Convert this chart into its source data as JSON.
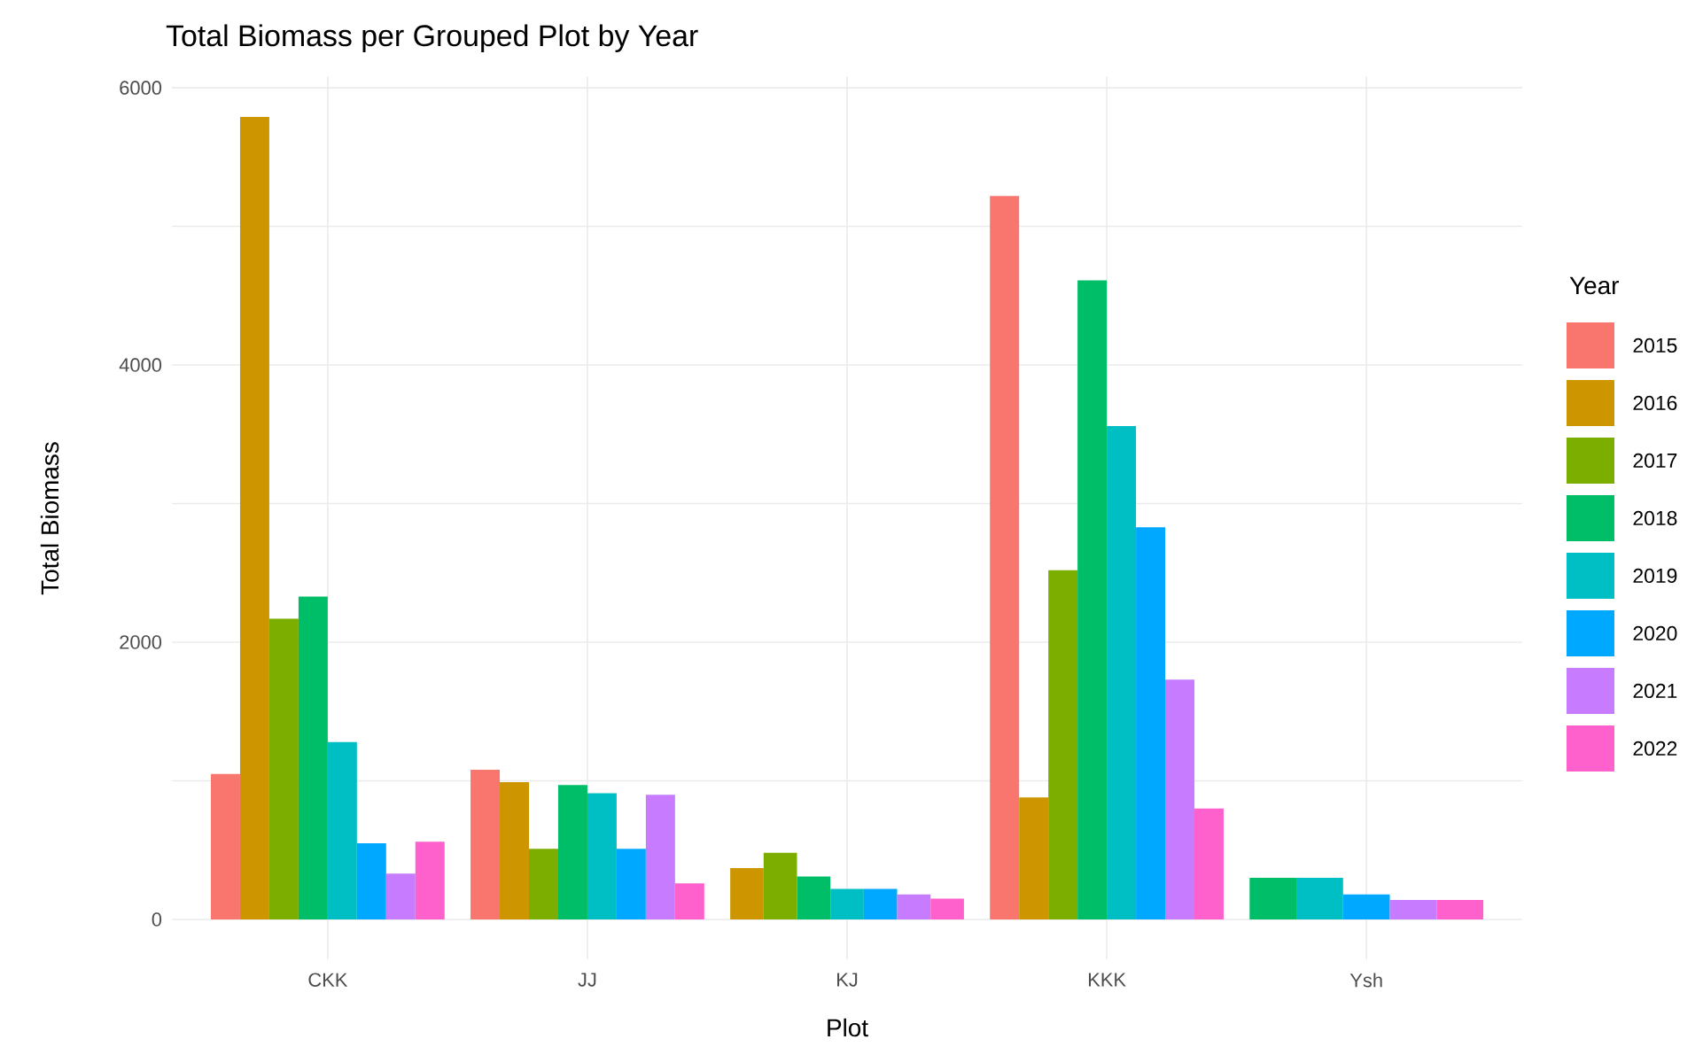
{
  "chart_data": {
    "type": "bar",
    "title": "Total Biomass per Grouped Plot by Year",
    "xlabel": "Plot",
    "ylabel": "Total Biomass",
    "legend_title": "Year",
    "categories": [
      "CKK",
      "JJ",
      "KJ",
      "KKK",
      "Ysh"
    ],
    "series": [
      {
        "name": "2015",
        "color": "#F8766D",
        "values": [
          1050,
          1080,
          null,
          5220,
          null
        ]
      },
      {
        "name": "2016",
        "color": "#CD9600",
        "values": [
          5790,
          990,
          370,
          880,
          null
        ]
      },
      {
        "name": "2017",
        "color": "#7CAE00",
        "values": [
          2170,
          510,
          480,
          2520,
          null
        ]
      },
      {
        "name": "2018",
        "color": "#00BE67",
        "values": [
          2330,
          970,
          310,
          4610,
          300
        ]
      },
      {
        "name": "2019",
        "color": "#00BFC4",
        "values": [
          1280,
          910,
          220,
          3560,
          300
        ]
      },
      {
        "name": "2020",
        "color": "#00A9FF",
        "values": [
          550,
          510,
          220,
          2830,
          180
        ]
      },
      {
        "name": "2021",
        "color": "#C77CFF",
        "values": [
          330,
          900,
          180,
          1730,
          140
        ]
      },
      {
        "name": "2022",
        "color": "#FF61CC",
        "values": [
          560,
          260,
          150,
          800,
          140
        ]
      }
    ],
    "ylim": [
      -290,
      6080
    ],
    "yticks": [
      0,
      {
        "value": 1000,
        "label": null
      },
      2000,
      {
        "value": 3000,
        "label": null
      },
      4000,
      {
        "value": 5000,
        "label": null
      },
      6000
    ],
    "grid": true,
    "legend": "right"
  }
}
